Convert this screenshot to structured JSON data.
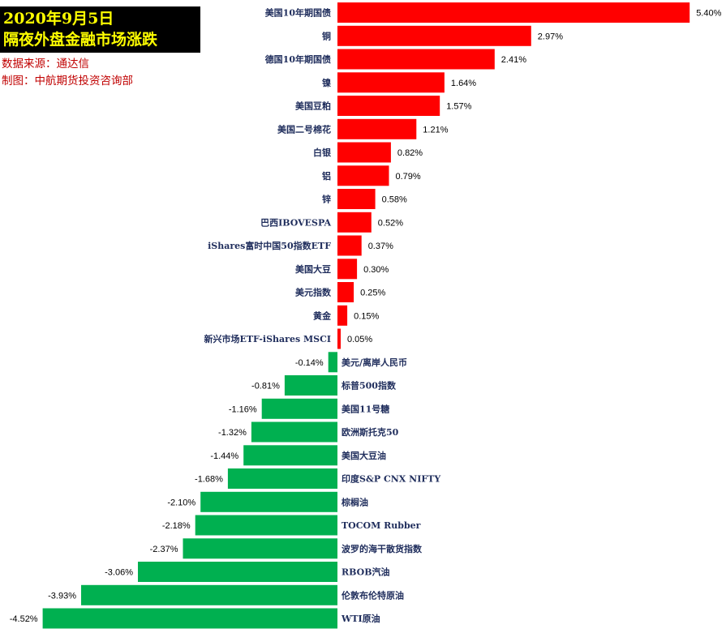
{
  "header": {
    "title_line1": "2020年9月5日",
    "title_line2": "隔夜外盘金融市场涨跌",
    "source": "数据来源：通达信",
    "credit": "制图：中航期货投资咨询部"
  },
  "colors": {
    "positive": "#ff0000",
    "negative": "#00b050",
    "title_bg": "#000000",
    "title_text": "#ffff00",
    "source_text": "#c00000",
    "category_text": "#1f2d5c"
  },
  "chart_data": {
    "type": "bar",
    "orientation": "horizontal",
    "categories": [
      "美国10年期国债",
      "铜",
      "德国10年期国债",
      "镍",
      "美国豆粕",
      "美国二号棉花",
      "白银",
      "铝",
      "锌",
      "巴西IBOVESPA",
      "iShares富时中国50指数ETF",
      "美国大豆",
      "美元指数",
      "黄金",
      "新兴市场ETF-iShares MSCI",
      "美元/离岸人民币",
      "标普500指数",
      "美国11号糖",
      "欧洲斯托克50",
      "美国大豆油",
      "印度S&P CNX NIFTY",
      "棕榈油",
      "TOCOM Rubber",
      "波罗的海干散货指数",
      "RBOB汽油",
      "伦敦布伦特原油",
      "WTI原油"
    ],
    "values": [
      5.4,
      2.97,
      2.41,
      1.64,
      1.57,
      1.21,
      0.82,
      0.79,
      0.58,
      0.52,
      0.37,
      0.3,
      0.25,
      0.15,
      0.05,
      -0.14,
      -0.81,
      -1.16,
      -1.32,
      -1.44,
      -1.68,
      -2.1,
      -2.18,
      -2.37,
      -3.06,
      -3.93,
      -4.52
    ],
    "value_labels": [
      "5.40%",
      "2.97%",
      "2.41%",
      "1.64%",
      "1.57%",
      "1.21%",
      "0.82%",
      "0.79%",
      "0.58%",
      "0.52%",
      "0.37%",
      "0.30%",
      "0.25%",
      "0.15%",
      "0.05%",
      "-0.14%",
      "-0.81%",
      "-1.16%",
      "-1.32%",
      "-1.44%",
      "-1.68%",
      "-2.10%",
      "-2.18%",
      "-2.37%",
      "-3.06%",
      "-3.93%",
      "-4.52%"
    ],
    "unit": "%",
    "sort": "descending",
    "grid": false,
    "legend": "none"
  }
}
